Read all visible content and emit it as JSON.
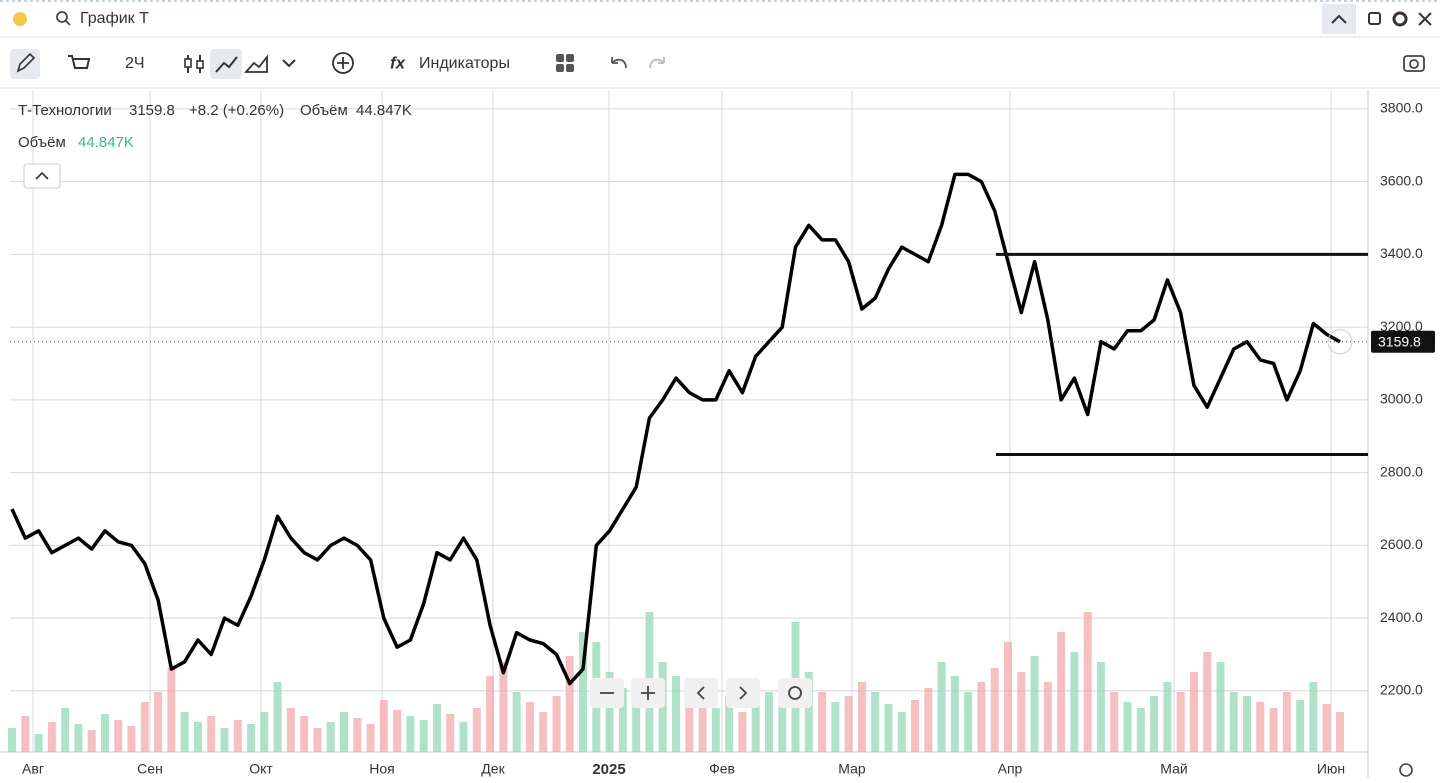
{
  "window": {
    "title": "График Т"
  },
  "toolbar": {
    "interval": "2Ч",
    "indicators": "Индикаторы"
  },
  "chart_data": {
    "type": "line",
    "title": "Т-Технологии",
    "last_price": 3159.8,
    "change_label": "+8.2 (+0.26%)",
    "volume_label": "Объём",
    "volume_value_label": "44.847K",
    "x_tick_labels": [
      "Авг",
      "Сен",
      "Окт",
      "Ноя",
      "Дек",
      "2025",
      "Фев",
      "Мар",
      "Апр",
      "Май",
      "Июн"
    ],
    "ylim": [
      2032,
      3852
    ],
    "yticks": [
      {
        "value": 2200,
        "label": "2200.0"
      },
      {
        "value": 2400,
        "label": "2400.0"
      },
      {
        "value": 2600,
        "label": "2600.0"
      },
      {
        "value": 2800,
        "label": "2800.0"
      },
      {
        "value": 3000,
        "label": "3000.0"
      },
      {
        "value": 3200,
        "label": "3200.0"
      },
      {
        "value": 3400,
        "label": "3400.0"
      },
      {
        "value": 3600,
        "label": "3600.0"
      },
      {
        "value": 3800,
        "label": "3800.0"
      }
    ],
    "grid": true,
    "hlines": [
      3400,
      2850
    ],
    "series": [
      {
        "color": "#000000",
        "values": [
          2700,
          2620,
          2640,
          2580,
          2600,
          2620,
          2590,
          2640,
          2610,
          2600,
          2550,
          2450,
          2260,
          2280,
          2340,
          2300,
          2400,
          2380,
          2460,
          2560,
          2680,
          2620,
          2580,
          2560,
          2600,
          2620,
          2600,
          2560,
          2400,
          2320,
          2340,
          2440,
          2580,
          2560,
          2620,
          2560,
          2380,
          2250,
          2360,
          2340,
          2330,
          2300,
          2220,
          2260,
          2600,
          2640,
          2700,
          2760,
          2950,
          3000,
          3060,
          3020,
          3000,
          3000,
          3080,
          3020,
          3120,
          3160,
          3200,
          3420,
          3480,
          3440,
          3440,
          3380,
          3250,
          3280,
          3360,
          3420,
          3400,
          3380,
          3480,
          3620,
          3620,
          3600,
          3520,
          3380,
          3240,
          3380,
          3220,
          3000,
          3060,
          2960,
          3160,
          3140,
          3190,
          3190,
          3220,
          3330,
          3240,
          3040,
          2980,
          3060,
          3140,
          3160,
          3110,
          3100,
          3000,
          3080,
          3210,
          3180,
          3159.8
        ]
      },
      {
        "axis": "volume",
        "values": [
          12,
          18,
          9,
          15,
          22,
          14,
          11,
          19,
          16,
          13,
          25,
          30,
          42,
          20,
          15,
          18,
          12,
          16,
          14,
          20,
          35,
          22,
          18,
          12,
          15,
          20,
          17,
          14,
          26,
          21,
          18,
          16,
          24,
          19,
          15,
          22,
          38,
          45,
          30,
          25,
          20,
          28,
          48,
          60,
          55,
          40,
          32,
          26,
          70,
          45,
          38,
          30,
          25,
          22,
          28,
          20,
          24,
          30,
          35,
          65,
          40,
          30,
          25,
          28,
          35,
          30,
          24,
          20,
          26,
          32,
          45,
          38,
          30,
          35,
          42,
          55,
          40,
          48,
          35,
          60,
          50,
          70,
          45,
          30,
          25,
          22,
          28,
          35,
          30,
          40,
          50,
          45,
          30,
          28,
          25,
          22,
          30,
          26,
          35,
          24,
          20
        ]
      }
    ],
    "vlim": [
      0,
      100
    ]
  }
}
